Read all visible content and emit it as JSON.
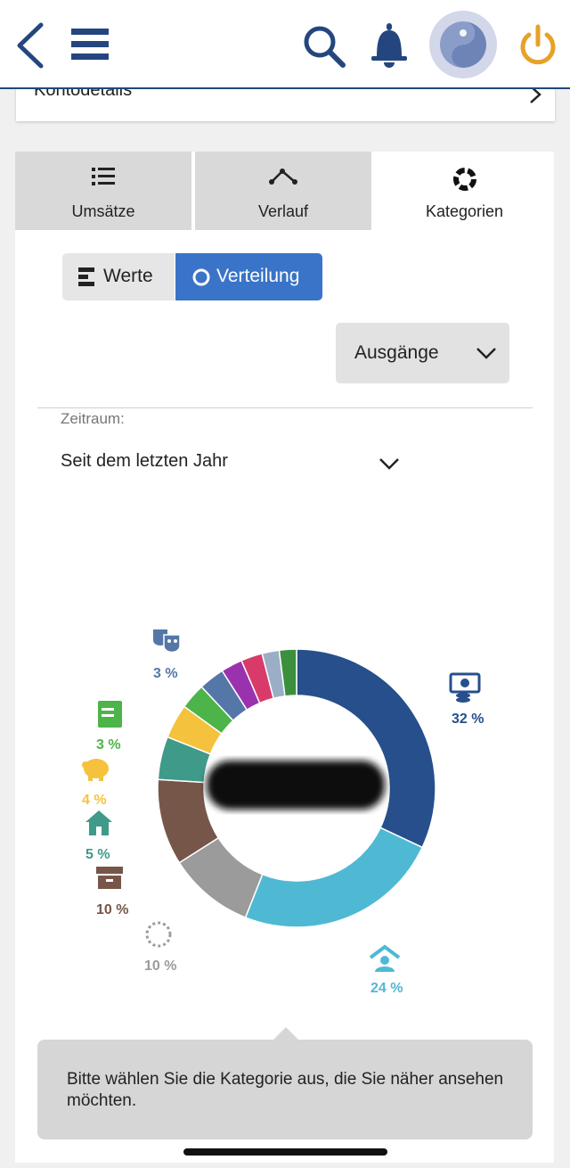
{
  "konto": {
    "label": "Kontodetails"
  },
  "tabs": [
    {
      "label": "Umsätze",
      "icon": "list-icon"
    },
    {
      "label": "Verlauf",
      "icon": "line-trend-icon"
    },
    {
      "label": "Kategorien",
      "icon": "donut-icon"
    }
  ],
  "view_toggle": {
    "werte_label": "Werte",
    "verteilung_label": "Verteilung"
  },
  "filter": {
    "direction_value": "Ausgänge"
  },
  "zeitraum": {
    "label": "Zeitraum:",
    "value": "Seit dem letzten Jahr"
  },
  "chart_data": {
    "type": "pie",
    "style": "donut",
    "slices": [
      {
        "label": "32 %",
        "value": 32,
        "color": "#264f8c",
        "icon": "money-icon"
      },
      {
        "label": "24 %",
        "value": 24,
        "color": "#4fb9d3",
        "icon": "house-person-icon"
      },
      {
        "label": "10 %",
        "value": 10,
        "color": "#9b9b9b",
        "icon": "dotted-circle-icon"
      },
      {
        "label": "10 %",
        "value": 10,
        "color": "#77564a",
        "icon": "archive-box-icon"
      },
      {
        "label": "5 %",
        "value": 5,
        "color": "#3f9a8a",
        "icon": "house-icon"
      },
      {
        "label": "4 %",
        "value": 4,
        "color": "#f4c23d",
        "icon": "piggy-bank-icon"
      },
      {
        "label": "3 %",
        "value": 3,
        "color": "#4cb448",
        "icon": "notebook-icon"
      },
      {
        "label": "3 %",
        "value": 3,
        "color": "#5577a8",
        "icon": "theater-masks-icon"
      },
      {
        "value": 2.5,
        "color": "#9b32ad"
      },
      {
        "value": 2.5,
        "color": "#d83a6a"
      },
      {
        "value": 2,
        "color": "#9aaec6"
      },
      {
        "value": 2,
        "color": "#3c8f3c"
      }
    ],
    "center_label": "redacted"
  },
  "tooltip": {
    "text": "Bitte wählen Sie die Kategorie aus, die Sie näher ansehen möchten."
  }
}
